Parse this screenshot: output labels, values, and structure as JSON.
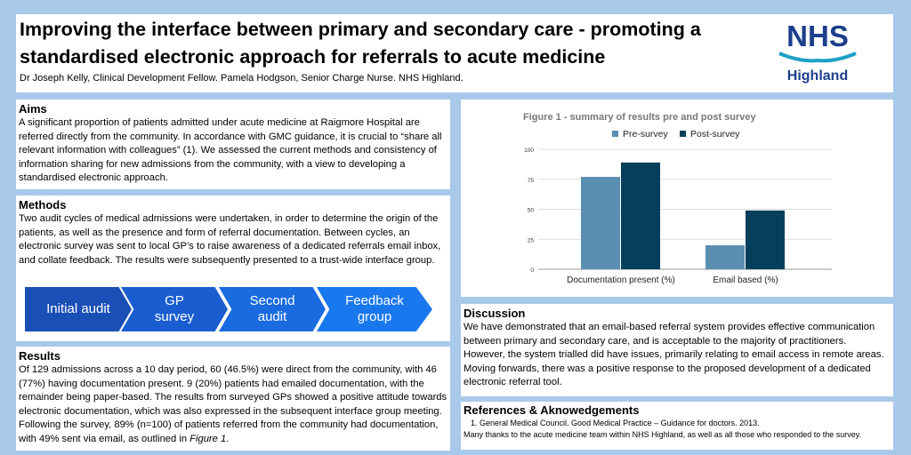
{
  "header": {
    "title": "Improving the interface between primary and secondary care - promoting a standardised electronic approach for referrals to acute medicine",
    "authors": "Dr Joseph Kelly, Clinical Development Fellow. Pamela Hodgson, Senior Charge Nurse. NHS Highland.",
    "logo": {
      "line1": "NHS",
      "line2": "Highland",
      "color": "#1c3f8c",
      "wave_color": "#1fa0c8"
    }
  },
  "aims": {
    "heading": "Aims",
    "text": "A significant proportion of patients admitted under acute medicine at Raigmore Hospital are referred directly from the community. In accordance with GMC guidance, it is crucial to “share all relevant information with colleagues” (1). We assessed the current methods and consistency of information sharing for new admissions from the community, with a view to developing a standardised electronic approach."
  },
  "methods": {
    "heading": "Methods",
    "text": "Two audit cycles of medical admissions were undertaken, in order to determine the origin of the patients, as well as the presence and form of referral documentation. Between cycles, an electronic survey was sent to local GP’s to raise awareness of a dedicated referrals email inbox, and collate feedback. The results were subsequently presented to a trust-wide interface group.",
    "steps": [
      {
        "l1": "Initial audit",
        "l2": ""
      },
      {
        "l1": "GP",
        "l2": "survey"
      },
      {
        "l1": "Second",
        "l2": "audit"
      },
      {
        "l1": "Feedback",
        "l2": "group"
      }
    ],
    "step_colors": [
      "#1a4fb5",
      "#1a5dd0",
      "#1a6ae0",
      "#1a78ee"
    ]
  },
  "results": {
    "heading": "Results",
    "text": "Of 129 admissions across a 10 day period, 60 (46.5%) were direct from the community, with 46 (77%) having documentation present. 9 (20%) patients had emailed documentation, with the remainder being paper-based. The results from surveyed GPs showed a positive attitude towards electronic documentation, which was also expressed in the subsequent interface group meeting. Following the survey, 89% (n=100) of patients referred from the community had documentation, with 49% sent via email, as outlined in ",
    "text_fig": "Figure 1",
    "text_end": "."
  },
  "chart_data": {
    "type": "bar",
    "title": "Figure 1 - summary of results pre and post survey",
    "categories": [
      "Documentation present (%)",
      "Email based (%)"
    ],
    "series": [
      {
        "name": "Pre-survey",
        "values": [
          77,
          20
        ],
        "color": "#5b8fb2"
      },
      {
        "name": "Post-survey",
        "values": [
          89,
          49
        ],
        "color": "#063f5c"
      }
    ],
    "ylim": [
      0,
      100
    ],
    "yticks": [
      "0",
      "25",
      "50",
      "75",
      "100"
    ],
    "grid": true,
    "legend": "top"
  },
  "discussion": {
    "heading": "Discussion",
    "text": "We have demonstrated that an email-based referral system provides effective communication between primary and secondary care, and is acceptable to the majority of practitioners. However, the system trialled did have issues, primarily relating to email access in remote areas. Moving forwards, there was a positive response to the proposed development of a dedicated electronic referral tool."
  },
  "references": {
    "heading": "References & Aknowedgements",
    "items": [
      "1.  General Medical Council. Good Medical Practice – Guidance for doctors. 2013."
    ],
    "thanks": "Many thanks to the acute medicine team within NHS Highland, as well as all those who responded to the survey."
  }
}
